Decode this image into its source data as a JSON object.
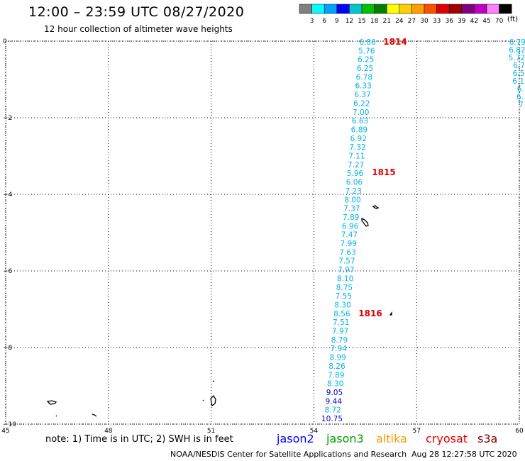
{
  "header": {
    "title": "12:00 – 23:59 UTC 08/27/2020",
    "subtitle": "12 hour collection of altimeter wave heights"
  },
  "legend": {
    "colors": [
      "#808080",
      "#00ffff",
      "#00a0ff",
      "#0000ff",
      "#00c8c8",
      "#00c000",
      "#008000",
      "#ffff00",
      "#ffd000",
      "#ffa000",
      "#ff5000",
      "#e00000",
      "#a00000",
      "#800080",
      "#c000c0",
      "#ff80ff",
      "#000000"
    ],
    "labels": [
      "3",
      "6",
      "9",
      "12",
      "15",
      "18",
      "21",
      "24",
      "27",
      "30",
      "33",
      "36",
      "39",
      "42",
      "45",
      "70"
    ],
    "unit": "(ft)"
  },
  "map": {
    "x_ticks": [
      "45",
      "48",
      "51",
      "54",
      "57",
      "60"
    ],
    "y_ticks": [
      "0",
      "−2",
      "−4",
      "−6",
      "−8",
      "−10"
    ],
    "passes": [
      {
        "label": "1814",
        "color": "#e00000"
      },
      {
        "label": "1815",
        "color": "#e00000"
      },
      {
        "label": "1816",
        "color": "#e00000"
      }
    ],
    "track_values": [
      "6.86",
      "5.76",
      "6.25",
      "6.25",
      "6.78",
      "6.33",
      "6.37",
      "6.22",
      "7.00",
      "6.63",
      "6.89",
      "6.92",
      "7.32",
      "7.11",
      "7.27",
      "5.96",
      "6.06",
      "7.23",
      "8.00",
      "7.37",
      "7.89",
      "6.96",
      "7.47",
      "7.99",
      "7.63",
      "7.57",
      "7.97",
      "8.10",
      "8.75",
      "7.55",
      "8.30",
      "8.56",
      "7.51",
      "7.97",
      "8.79",
      "7.94",
      "8.99",
      "8.26",
      "7.89",
      "8.30",
      "9.05",
      "9.44",
      "8.72",
      "10.75"
    ],
    "track_colors": [
      "#00b4e6",
      "#00b4e6",
      "#00b4e6",
      "#00b4e6",
      "#00b4e6",
      "#00b4e6",
      "#00b4e6",
      "#00b4e6",
      "#00b4e6",
      "#00b4e6",
      "#00b4e6",
      "#00b4e6",
      "#00b4e6",
      "#00b4e6",
      "#00b4e6",
      "#00b4e6",
      "#00b4e6",
      "#00b4e6",
      "#00b4e6",
      "#00b4e6",
      "#00b4e6",
      "#00b4e6",
      "#00b4e6",
      "#00b4e6",
      "#00b4e6",
      "#00b4e6",
      "#00b4e6",
      "#00b4e6",
      "#00b4e6",
      "#00b4e6",
      "#00b4e6",
      "#00b4e6",
      "#00b4e6",
      "#00b4e6",
      "#00b4e6",
      "#00b4e6",
      "#00b4e6",
      "#00b4e6",
      "#00b4e6",
      "#00b4e6",
      "#0000cc",
      "#0000cc",
      "#00b4e6",
      "#0000cc"
    ],
    "edge_values": [
      "6.79",
      "6.82",
      "5.72",
      "6.7",
      "6.5",
      "6.1",
      "6.",
      "6.",
      "7"
    ]
  },
  "footer": {
    "note": "note: 1) Time is in UTC; 2) SWH is in feet",
    "satellites": [
      {
        "name": "jason2",
        "color": "#0000ff"
      },
      {
        "name": "jason3",
        "color": "#00a000"
      },
      {
        "name": "altika",
        "color": "#ff9900"
      },
      {
        "name": "cryosat",
        "color": "#e00000"
      },
      {
        "name": "s3a",
        "color": "#800000"
      }
    ],
    "credit": "NOAA/NESDIS Center for Satellite Applications and Research",
    "timestamp": "Aug 28 12:27:58 UTC 2020"
  }
}
